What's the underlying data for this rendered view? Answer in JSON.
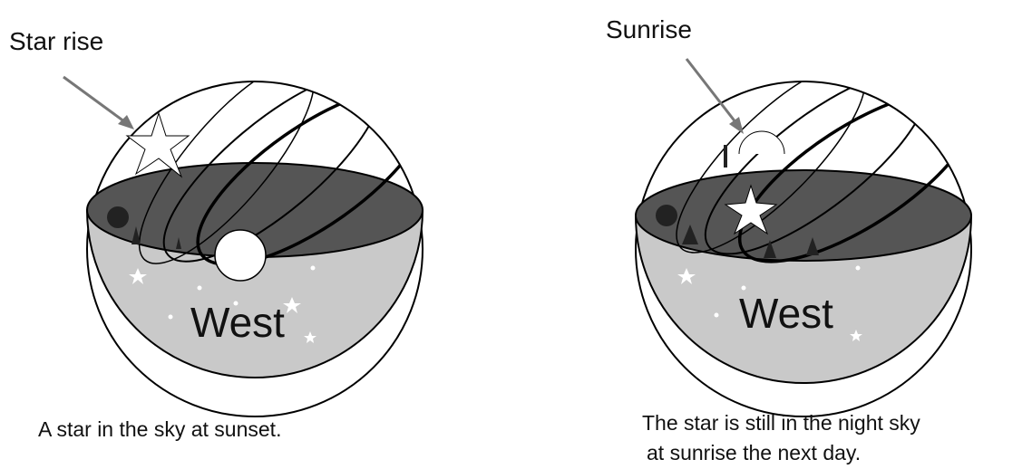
{
  "panels": [
    {
      "label": "Star rise",
      "region": "West",
      "caption": [
        "A star in the sky at sunset."
      ]
    },
    {
      "label": "Sunrise",
      "region": "West",
      "caption": [
        "The star is still in the night sky",
        "at sunrise the next day."
      ]
    }
  ]
}
